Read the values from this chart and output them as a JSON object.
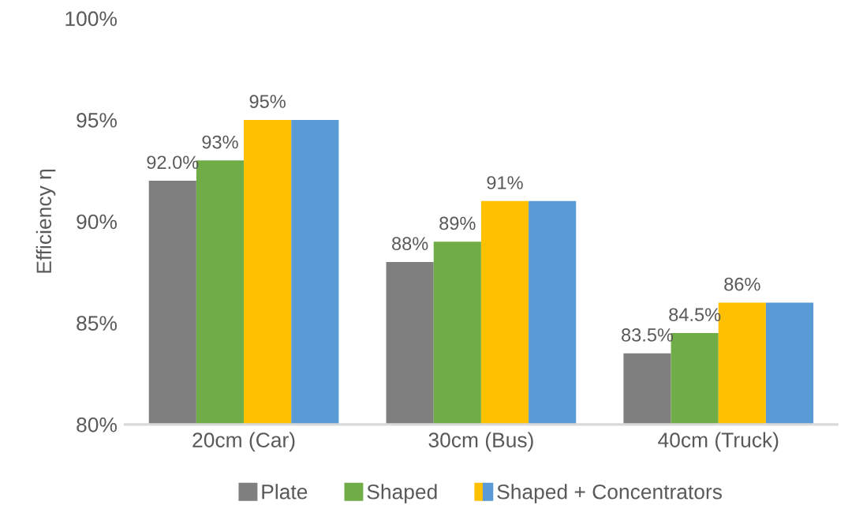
{
  "chart_data": {
    "type": "bar",
    "ylabel": "Efficiency η",
    "categories": [
      "20cm (Car)",
      "30cm (Bus)",
      "40cm (Truck)"
    ],
    "series": [
      {
        "name": "Plate",
        "color": "#7f7f7f",
        "values": [
          92.0,
          88,
          83.5
        ],
        "value_labels": [
          "92.0%",
          "88%",
          "83.5%"
        ]
      },
      {
        "name": "Shaped",
        "color": "#70ad47",
        "values": [
          93,
          89,
          84.5
        ],
        "value_labels": [
          "93%",
          "89%",
          "84.5%"
        ]
      },
      {
        "name": "Shaped + Concentrators",
        "color": "#ffc000",
        "values": [
          95,
          91,
          86
        ],
        "value_labels": [
          "95%",
          "91%",
          "86%"
        ]
      },
      {
        "color": "#5b9bd5",
        "values": [
          95,
          91,
          86
        ]
      }
    ],
    "ylim": [
      80,
      100
    ],
    "yticks": [
      {
        "value": 80,
        "label": "80%"
      },
      {
        "value": 85,
        "label": "85%"
      },
      {
        "value": 90,
        "label": "90%"
      },
      {
        "value": 95,
        "label": "95%"
      },
      {
        "value": 100,
        "label": "100%"
      }
    ],
    "grid": false,
    "legend": "bottom"
  }
}
